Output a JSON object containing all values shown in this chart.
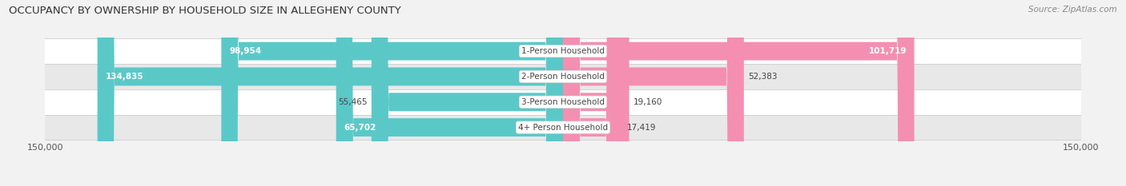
{
  "title": "OCCUPANCY BY OWNERSHIP BY HOUSEHOLD SIZE IN ALLEGHENY COUNTY",
  "source": "Source: ZipAtlas.com",
  "categories": [
    "1-Person Household",
    "2-Person Household",
    "3-Person Household",
    "4+ Person Household"
  ],
  "owner_values": [
    98954,
    134835,
    55465,
    65702
  ],
  "renter_values": [
    101719,
    52383,
    19160,
    17419
  ],
  "owner_color": "#5BC8C8",
  "renter_color": "#F48FB1",
  "background_color": "#f2f2f2",
  "row_bg_colors": [
    "#ffffff",
    "#e8e8e8"
  ],
  "xlim": 150000,
  "title_fontsize": 9.5,
  "source_fontsize": 7.5,
  "label_fontsize": 7.5,
  "tick_fontsize": 8,
  "bar_height": 0.72
}
